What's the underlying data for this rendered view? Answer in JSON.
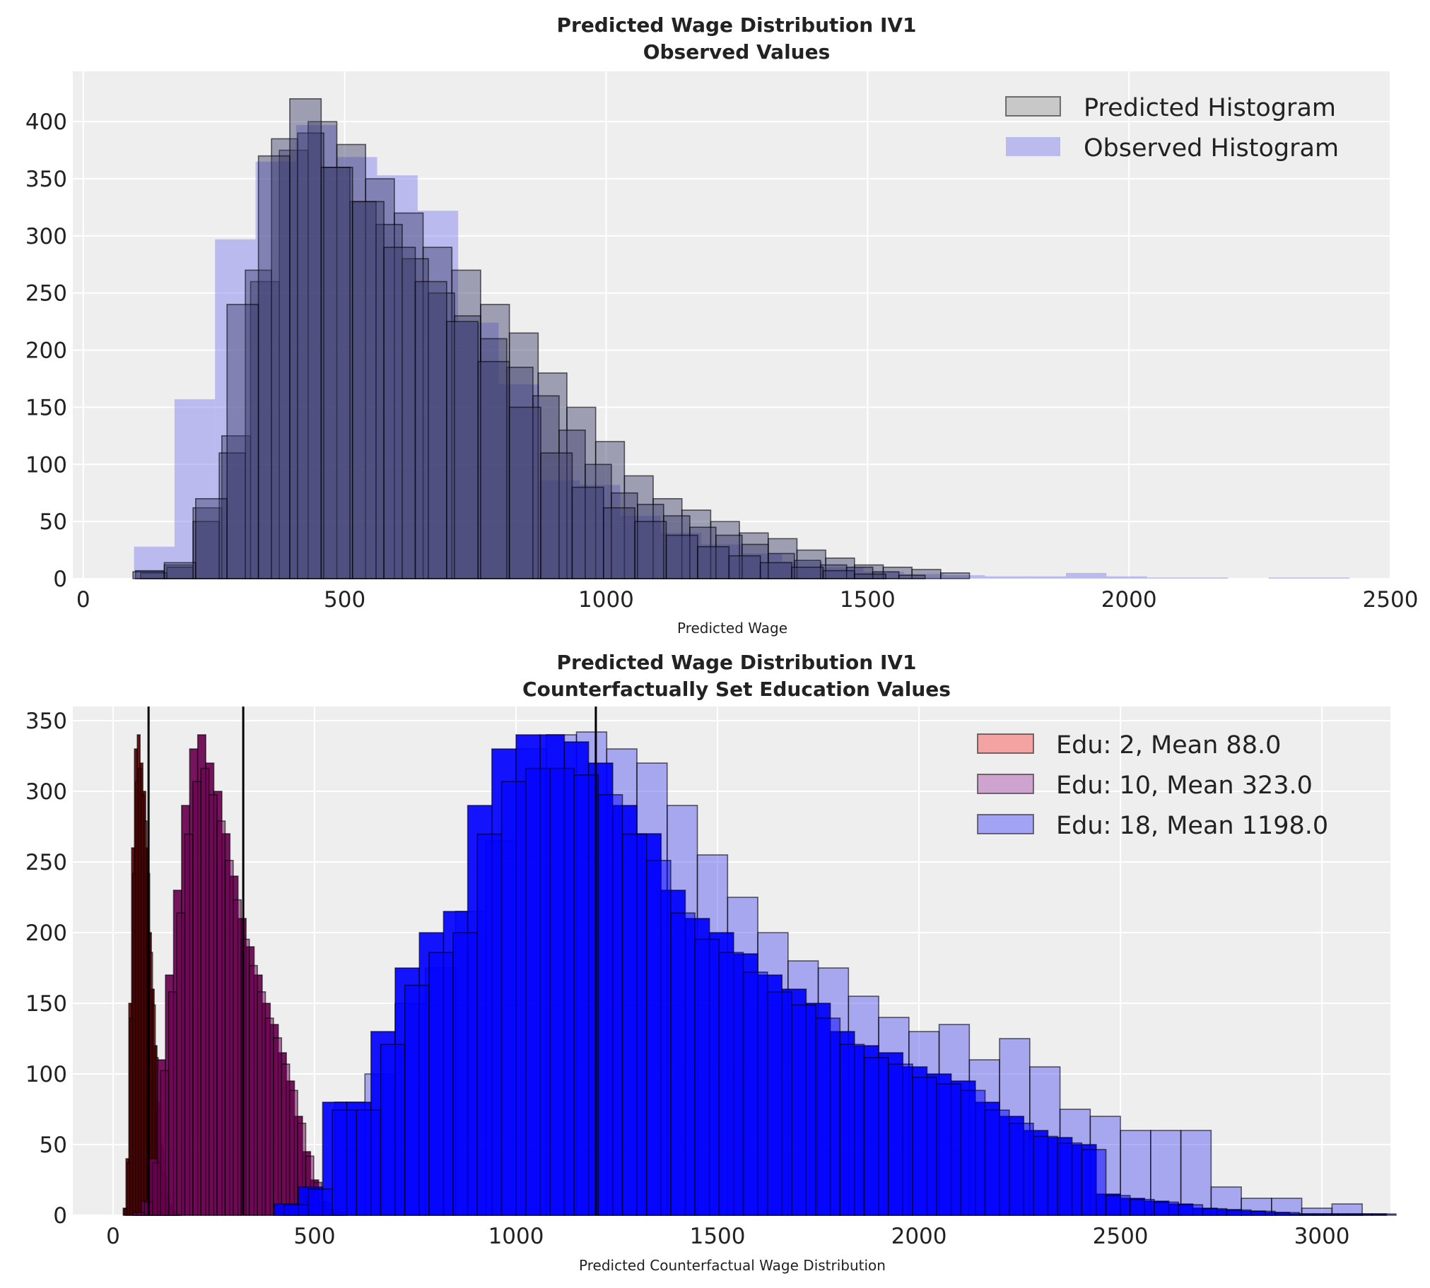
{
  "chart_data": [
    {
      "type": "bar",
      "title": "Predicted Wage Distribution IV1",
      "subtitle": "Observed Values",
      "xlabel": "Predicted Wage",
      "ylabel": "",
      "xlim": [
        -20,
        2500
      ],
      "ylim": [
        0,
        444
      ],
      "xticks": [
        0,
        500,
        1000,
        1500,
        2000,
        2500
      ],
      "yticks": [
        0,
        50,
        100,
        150,
        200,
        250,
        300,
        350,
        400
      ],
      "grid": true,
      "legend": "top-right",
      "legend_entries": [
        "Predicted Histogram",
        "Observed Histogram"
      ],
      "colors": {
        "predicted_fill": "#808080",
        "predicted_edge": "#000000",
        "observed_fill": "#7b7bf0",
        "background": "#eeeeee"
      },
      "predicted": [
        {
          "start": 100,
          "width": 55,
          "counts": [
            7,
            12,
            62,
            125,
            260,
            375,
            400,
            380,
            350,
            320,
            290,
            270,
            240,
            215,
            180,
            150,
            120,
            90,
            70,
            60,
            50,
            40,
            35,
            25,
            18,
            12,
            10,
            8,
            5
          ]
        },
        {
          "start": 110,
          "width": 50,
          "counts": [
            5,
            10,
            50,
            110,
            270,
            385,
            390,
            360,
            330,
            310,
            280,
            250,
            230,
            210,
            185,
            160,
            130,
            100,
            75,
            65,
            55,
            45,
            38,
            30,
            22,
            16,
            12,
            10,
            6,
            3
          ]
        },
        {
          "start": 95,
          "width": 60,
          "counts": [
            6,
            14,
            70,
            240,
            370,
            420,
            360,
            330,
            290,
            260,
            225,
            190,
            150,
            110,
            80,
            62,
            50,
            38,
            28,
            20,
            14,
            10,
            7,
            4
          ]
        }
      ],
      "observed": {
        "start": 97,
        "width": 77.5,
        "counts": [
          28,
          157,
          297,
          365,
          397,
          369,
          353,
          322,
          224,
          170,
          86,
          82,
          55,
          40,
          30,
          22,
          15,
          10,
          6,
          4,
          3,
          2,
          2,
          5,
          2,
          1,
          1,
          0,
          1,
          1
        ]
      }
    },
    {
      "type": "bar",
      "title": "Predicted Wage Distribution IV1",
      "subtitle": "Counterfactually Set Education Values",
      "xlabel": "Predicted Counterfactual Wage Distribution",
      "ylabel": "",
      "xlim": [
        -100,
        3170
      ],
      "ylim": [
        0,
        360
      ],
      "xticks": [
        0,
        500,
        1000,
        1500,
        2000,
        2500,
        3000
      ],
      "yticks": [
        0,
        50,
        100,
        150,
        200,
        250,
        300,
        350
      ],
      "grid": true,
      "legend": "top-right",
      "series": [
        {
          "name": "Edu: 2, Mean 88.0",
          "mean": 88.0,
          "legend_color": "#f4a3a3",
          "fill": "#600000",
          "start": 25,
          "width": 7,
          "counts": [
            5,
            40,
            150,
            260,
            330,
            340,
            320,
            300,
            260,
            200,
            160,
            120,
            80,
            50,
            30,
            15,
            8,
            4,
            2,
            1
          ]
        },
        {
          "name": "Edu: 10, Mean 323.0",
          "mean": 323.0,
          "legend_color": "#cfa3cf",
          "fill": "#6a0050",
          "start": 50,
          "width": 20,
          "counts": [
            2,
            10,
            40,
            110,
            170,
            230,
            290,
            330,
            340,
            320,
            300,
            270,
            240,
            210,
            190,
            170,
            150,
            135,
            115,
            95,
            70,
            45,
            25,
            10,
            4,
            2
          ]
        },
        {
          "name": "Edu: 18, Mean 1198.0",
          "mean": 1198.0,
          "legend_color": "#a3a3f4",
          "fill": "#0000ff",
          "start": 400,
          "width": 60,
          "counts": [
            8,
            20,
            80,
            80,
            130,
            175,
            200,
            215,
            290,
            330,
            340,
            340,
            335,
            320,
            290,
            270,
            230,
            210,
            200,
            185,
            170,
            160,
            150,
            130,
            120,
            115,
            105,
            100,
            95,
            80,
            70,
            60,
            55,
            50,
            15,
            12,
            10,
            8,
            5,
            4,
            3,
            2,
            1,
            1,
            1,
            1
          ]
        }
      ],
      "edu18_extra_draw": {
        "start": 550,
        "width": 75,
        "counts": [
          80,
          100,
          150,
          175,
          215,
          265,
          330,
          340,
          342,
          330,
          320,
          290,
          255,
          225,
          200,
          180,
          175,
          155,
          140,
          130,
          135,
          110,
          125,
          105,
          75,
          70,
          60,
          60,
          60,
          20,
          12,
          12,
          5,
          8
        ]
      }
    }
  ]
}
